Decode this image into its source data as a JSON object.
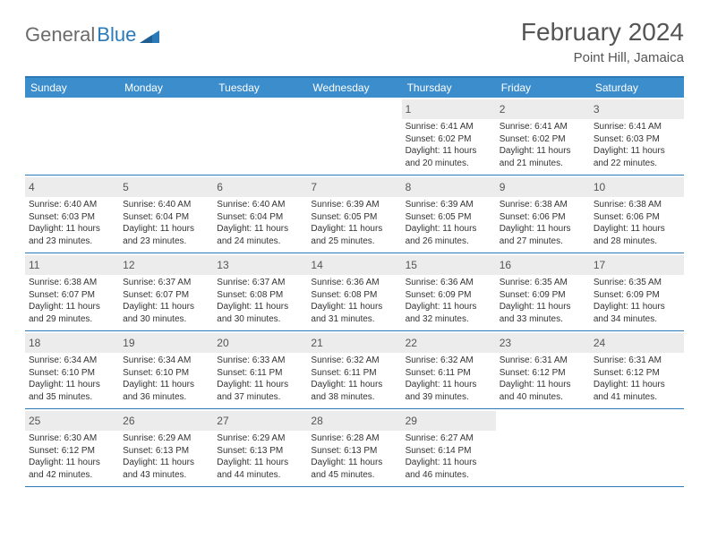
{
  "brand": {
    "part1": "General",
    "part2": "Blue"
  },
  "title": "February 2024",
  "location": "Point Hill, Jamaica",
  "colors": {
    "header_bg": "#3c8dcc",
    "border": "#2a7ab9",
    "daynum_bg": "#ececec",
    "text": "#333333",
    "muted": "#555555"
  },
  "weekdays": [
    "Sunday",
    "Monday",
    "Tuesday",
    "Wednesday",
    "Thursday",
    "Friday",
    "Saturday"
  ],
  "weeks": [
    [
      null,
      null,
      null,
      null,
      {
        "n": "1",
        "sunrise": "6:41 AM",
        "sunset": "6:02 PM",
        "dl": "11 hours and 20 minutes."
      },
      {
        "n": "2",
        "sunrise": "6:41 AM",
        "sunset": "6:02 PM",
        "dl": "11 hours and 21 minutes."
      },
      {
        "n": "3",
        "sunrise": "6:41 AM",
        "sunset": "6:03 PM",
        "dl": "11 hours and 22 minutes."
      }
    ],
    [
      {
        "n": "4",
        "sunrise": "6:40 AM",
        "sunset": "6:03 PM",
        "dl": "11 hours and 23 minutes."
      },
      {
        "n": "5",
        "sunrise": "6:40 AM",
        "sunset": "6:04 PM",
        "dl": "11 hours and 23 minutes."
      },
      {
        "n": "6",
        "sunrise": "6:40 AM",
        "sunset": "6:04 PM",
        "dl": "11 hours and 24 minutes."
      },
      {
        "n": "7",
        "sunrise": "6:39 AM",
        "sunset": "6:05 PM",
        "dl": "11 hours and 25 minutes."
      },
      {
        "n": "8",
        "sunrise": "6:39 AM",
        "sunset": "6:05 PM",
        "dl": "11 hours and 26 minutes."
      },
      {
        "n": "9",
        "sunrise": "6:38 AM",
        "sunset": "6:06 PM",
        "dl": "11 hours and 27 minutes."
      },
      {
        "n": "10",
        "sunrise": "6:38 AM",
        "sunset": "6:06 PM",
        "dl": "11 hours and 28 minutes."
      }
    ],
    [
      {
        "n": "11",
        "sunrise": "6:38 AM",
        "sunset": "6:07 PM",
        "dl": "11 hours and 29 minutes."
      },
      {
        "n": "12",
        "sunrise": "6:37 AM",
        "sunset": "6:07 PM",
        "dl": "11 hours and 30 minutes."
      },
      {
        "n": "13",
        "sunrise": "6:37 AM",
        "sunset": "6:08 PM",
        "dl": "11 hours and 30 minutes."
      },
      {
        "n": "14",
        "sunrise": "6:36 AM",
        "sunset": "6:08 PM",
        "dl": "11 hours and 31 minutes."
      },
      {
        "n": "15",
        "sunrise": "6:36 AM",
        "sunset": "6:09 PM",
        "dl": "11 hours and 32 minutes."
      },
      {
        "n": "16",
        "sunrise": "6:35 AM",
        "sunset": "6:09 PM",
        "dl": "11 hours and 33 minutes."
      },
      {
        "n": "17",
        "sunrise": "6:35 AM",
        "sunset": "6:09 PM",
        "dl": "11 hours and 34 minutes."
      }
    ],
    [
      {
        "n": "18",
        "sunrise": "6:34 AM",
        "sunset": "6:10 PM",
        "dl": "11 hours and 35 minutes."
      },
      {
        "n": "19",
        "sunrise": "6:34 AM",
        "sunset": "6:10 PM",
        "dl": "11 hours and 36 minutes."
      },
      {
        "n": "20",
        "sunrise": "6:33 AM",
        "sunset": "6:11 PM",
        "dl": "11 hours and 37 minutes."
      },
      {
        "n": "21",
        "sunrise": "6:32 AM",
        "sunset": "6:11 PM",
        "dl": "11 hours and 38 minutes."
      },
      {
        "n": "22",
        "sunrise": "6:32 AM",
        "sunset": "6:11 PM",
        "dl": "11 hours and 39 minutes."
      },
      {
        "n": "23",
        "sunrise": "6:31 AM",
        "sunset": "6:12 PM",
        "dl": "11 hours and 40 minutes."
      },
      {
        "n": "24",
        "sunrise": "6:31 AM",
        "sunset": "6:12 PM",
        "dl": "11 hours and 41 minutes."
      }
    ],
    [
      {
        "n": "25",
        "sunrise": "6:30 AM",
        "sunset": "6:12 PM",
        "dl": "11 hours and 42 minutes."
      },
      {
        "n": "26",
        "sunrise": "6:29 AM",
        "sunset": "6:13 PM",
        "dl": "11 hours and 43 minutes."
      },
      {
        "n": "27",
        "sunrise": "6:29 AM",
        "sunset": "6:13 PM",
        "dl": "11 hours and 44 minutes."
      },
      {
        "n": "28",
        "sunrise": "6:28 AM",
        "sunset": "6:13 PM",
        "dl": "11 hours and 45 minutes."
      },
      {
        "n": "29",
        "sunrise": "6:27 AM",
        "sunset": "6:14 PM",
        "dl": "11 hours and 46 minutes."
      },
      null,
      null
    ]
  ],
  "labels": {
    "sunrise": "Sunrise:",
    "sunset": "Sunset:",
    "daylight": "Daylight:"
  }
}
